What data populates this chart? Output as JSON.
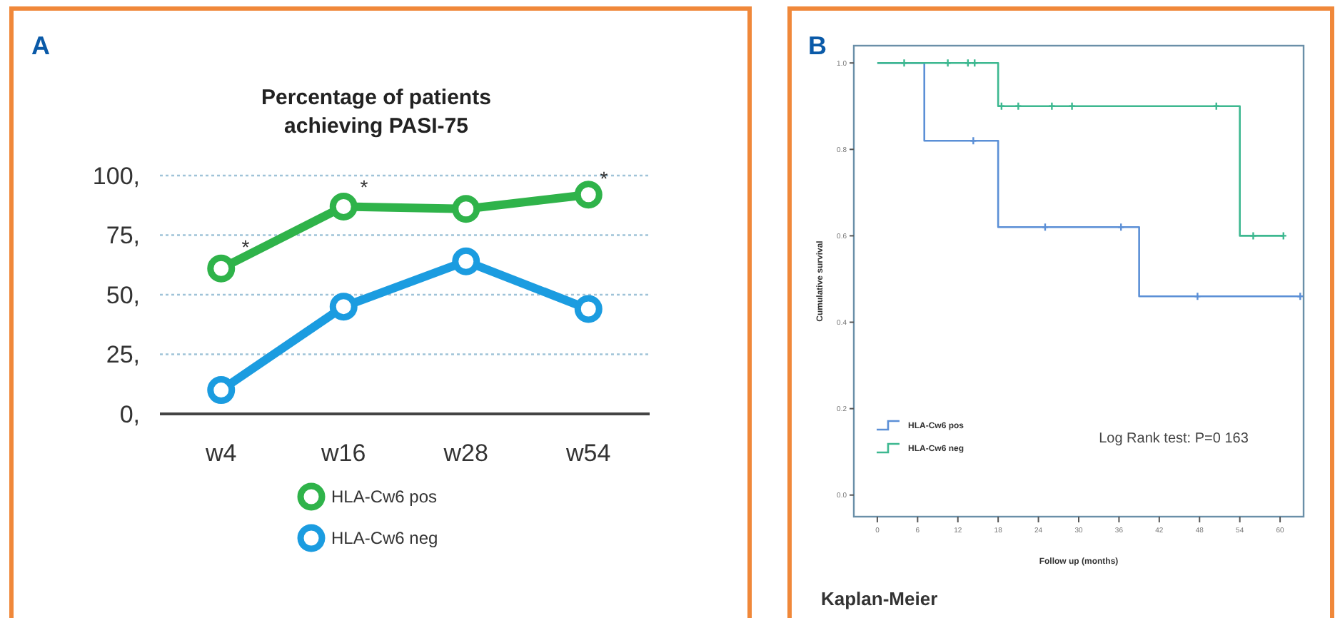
{
  "chart_data": [
    {
      "type": "line",
      "title": "Percentage of patients achieving PASI-75",
      "categories": [
        "w4",
        "w16",
        "w28",
        "w54"
      ],
      "series": [
        {
          "name": "HLA-Cw6 pos",
          "color": "#2fb34a",
          "values": [
            61,
            87,
            86,
            92
          ]
        },
        {
          "name": "HLA-Cw6 neg",
          "color": "#1b9ce0",
          "values": [
            10,
            45,
            64,
            44
          ]
        }
      ],
      "ylim": [
        0,
        100
      ],
      "yticks": [
        {
          "value": 0,
          "label": "0,"
        },
        {
          "value": 25,
          "label": "25,"
        },
        {
          "value": 50,
          "label": "50,"
        },
        {
          "value": 75,
          "label": "75,"
        },
        {
          "value": 100,
          "label": "100,"
        }
      ],
      "grid": "y",
      "legend": "bottom",
      "marker": "circle",
      "annotations": [
        "A",
        "*",
        "*",
        "*"
      ]
    },
    {
      "type": "step",
      "xlabel": "Follow up (months)",
      "ylabel": "Cumulative survival",
      "series": [
        {
          "name": "HLA-Cw6 pos",
          "color": "#5b8fd6",
          "x": [
            0,
            7,
            18,
            39,
            63
          ],
          "values": [
            1,
            0.82,
            0.62,
            0.46,
            0.46
          ],
          "marker": "none"
        },
        {
          "name": "HLA-Cw6 neg",
          "color": "#3db890",
          "x": [
            0,
            18,
            54,
            60.5
          ],
          "values": [
            1,
            0.9,
            0.6,
            0.6
          ],
          "marker": "none"
        },
        {
          "type": "scatter",
          "color": "#5b8fd6",
          "x": [
            14.3,
            25,
            36.3,
            47.7,
            63
          ],
          "values": [
            0.82,
            0.62,
            0.62,
            0.46,
            0.46
          ],
          "marker": "cross"
        },
        {
          "type": "scatter",
          "color": "#3db890",
          "x": [
            4,
            10.5,
            13.5,
            14.5,
            18.5,
            21,
            26,
            29,
            50.5,
            56,
            60.5
          ],
          "values": [
            1,
            1,
            1,
            1,
            0.9,
            0.9,
            0.9,
            0.9,
            0.9,
            0.6,
            0.6
          ],
          "marker": "cross"
        }
      ],
      "xlim": [
        -3.5,
        63.5
      ],
      "xticks": [
        0,
        6,
        12,
        18,
        24,
        30,
        36,
        42,
        48,
        54,
        60
      ],
      "ylim": [
        -0.05,
        1.04
      ],
      "yticks": [
        {
          "value": 0,
          "label": "0.0"
        },
        {
          "value": 0.2,
          "label": "0.2"
        },
        {
          "value": 0.4,
          "label": "0.4"
        },
        {
          "value": 0.6,
          "label": "0.6"
        },
        {
          "value": 0.8,
          "label": "0.8"
        },
        {
          "value": 1,
          "label": "1.0"
        }
      ],
      "grid": false,
      "legend": "bottom left",
      "annotations": [
        "B",
        "Log Rank test: P=0 163",
        "Kaplan-Meier"
      ]
    }
  ]
}
